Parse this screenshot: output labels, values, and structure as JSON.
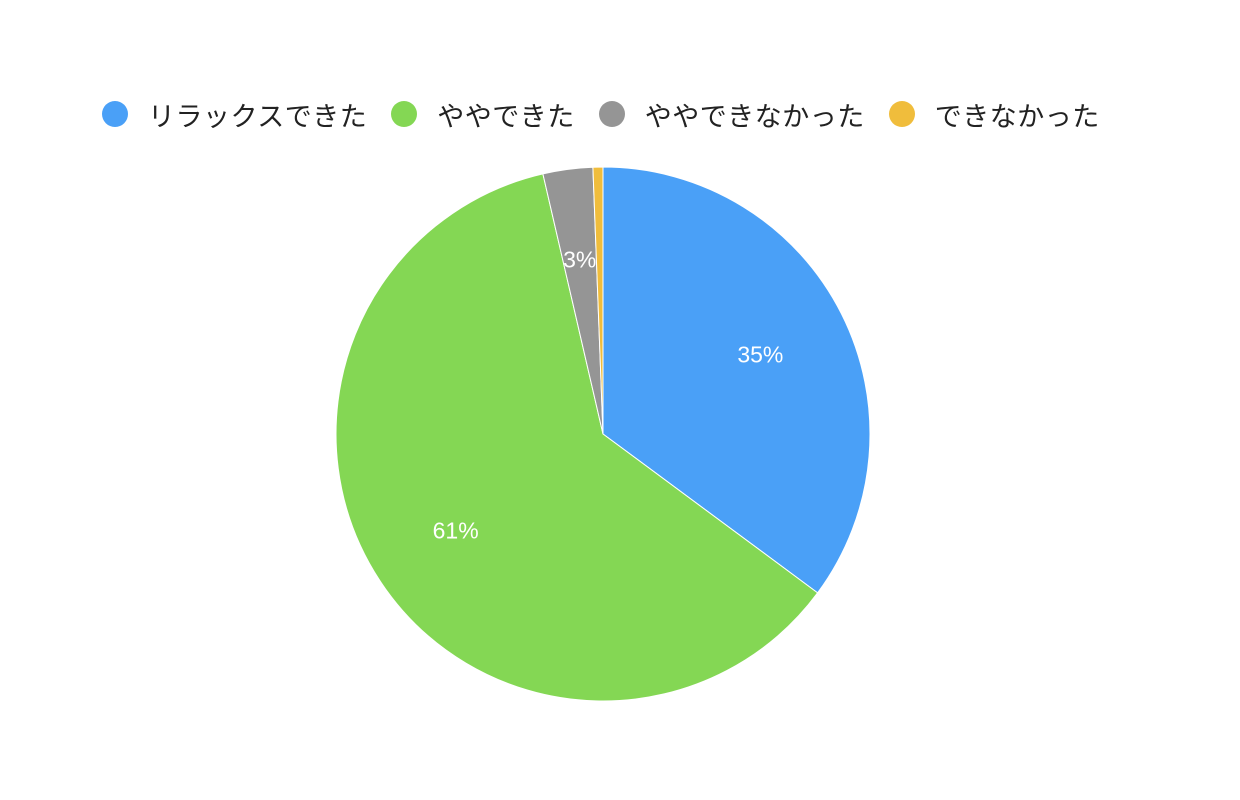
{
  "chart_data": {
    "type": "pie",
    "start_angle_deg": 0,
    "direction": "clockwise",
    "legend_position": "top",
    "slices": [
      {
        "name": "リラックスできた",
        "value": 35,
        "label": "35%",
        "color": "#4aa0f7"
      },
      {
        "name": "ややできた",
        "value": 61,
        "label": "61%",
        "color": "#84d754"
      },
      {
        "name": "ややできなかった",
        "value": 3,
        "label": "3%",
        "color": "#959595"
      },
      {
        "name": "できなかった",
        "value": 0.6,
        "label": "",
        "color": "#f0bd3c"
      }
    ]
  }
}
